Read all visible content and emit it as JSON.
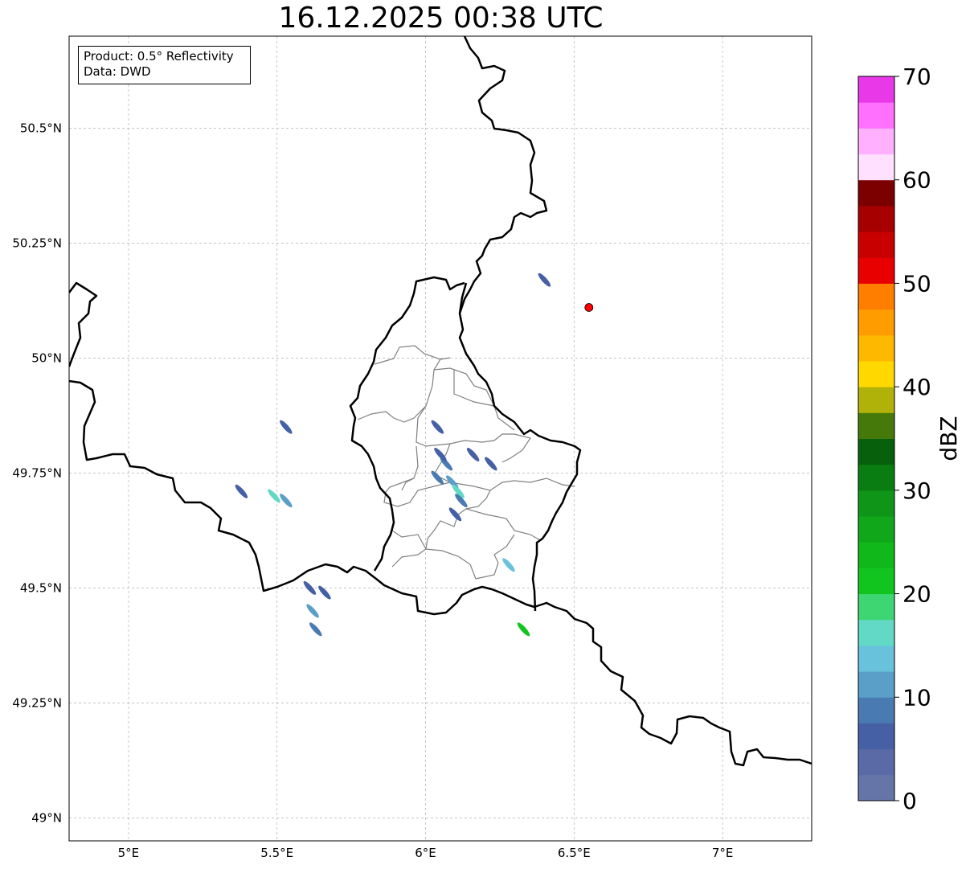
{
  "title": "16.12.2025 00:38 UTC",
  "info": {
    "product": "Product: 0.5° Reflectivity",
    "source": "Data: DWD"
  },
  "map": {
    "lon_range": [
      4.8,
      7.3
    ],
    "lat_range": [
      48.95,
      50.7
    ],
    "x_ticks": [
      {
        "value": 5.0,
        "label": "5°E"
      },
      {
        "value": 5.5,
        "label": "5.5°E"
      },
      {
        "value": 6.0,
        "label": "6°E"
      },
      {
        "value": 6.5,
        "label": "6.5°E"
      },
      {
        "value": 7.0,
        "label": "7°E"
      }
    ],
    "y_ticks": [
      {
        "value": 49.0,
        "label": "49°N"
      },
      {
        "value": 49.25,
        "label": "49.25°N"
      },
      {
        "value": 49.5,
        "label": "49.5°N"
      },
      {
        "value": 49.75,
        "label": "49.75°N"
      },
      {
        "value": 50.0,
        "label": "50°N"
      },
      {
        "value": 50.25,
        "label": "50.25°N"
      },
      {
        "value": 50.5,
        "label": "50.5°N"
      }
    ],
    "radar_site": {
      "lon": 6.55,
      "lat": 50.11,
      "color": "#ff0000"
    }
  },
  "colorbar": {
    "label": "dBZ",
    "min": 0,
    "max": 70,
    "ticks": [
      {
        "value": 0,
        "label": "0"
      },
      {
        "value": 10,
        "label": "10"
      },
      {
        "value": 20,
        "label": "20"
      },
      {
        "value": 30,
        "label": "30"
      },
      {
        "value": 40,
        "label": "40"
      },
      {
        "value": 50,
        "label": "50"
      },
      {
        "value": 60,
        "label": "60"
      },
      {
        "value": 70,
        "label": "70"
      }
    ],
    "colors": [
      "#6675a8",
      "#5a6aa6",
      "#4560a5",
      "#4a7ab2",
      "#5a9fc8",
      "#68c2dc",
      "#62d9c4",
      "#3dd672",
      "#12c41e",
      "#10b81a",
      "#10a81a",
      "#0f9518",
      "#0a7d12",
      "#06600c",
      "#457a0a",
      "#b0b20a",
      "#ffd800",
      "#ffb800",
      "#ff9c00",
      "#ff7e00",
      "#e80000",
      "#c80000",
      "#a60000",
      "#7c0000",
      "#ffe0ff",
      "#ffb0ff",
      "#ff70ff",
      "#e838e8"
    ]
  },
  "echoes": [
    {
      "lon": 6.07,
      "lat": 49.77,
      "dbz": 8
    },
    {
      "lon": 6.09,
      "lat": 49.73,
      "dbz": 12
    },
    {
      "lon": 6.11,
      "lat": 49.71,
      "dbz": 17
    },
    {
      "lon": 6.12,
      "lat": 49.69,
      "dbz": 8
    },
    {
      "lon": 6.05,
      "lat": 49.79,
      "dbz": 6
    },
    {
      "lon": 6.04,
      "lat": 49.74,
      "dbz": 9
    },
    {
      "lon": 6.1,
      "lat": 49.66,
      "dbz": 7
    },
    {
      "lon": 6.16,
      "lat": 49.79,
      "dbz": 6
    },
    {
      "lon": 6.22,
      "lat": 49.77,
      "dbz": 5
    },
    {
      "lon": 6.04,
      "lat": 49.85,
      "dbz": 5
    },
    {
      "lon": 5.53,
      "lat": 49.85,
      "dbz": 6
    },
    {
      "lon": 5.49,
      "lat": 49.7,
      "dbz": 15
    },
    {
      "lon": 5.53,
      "lat": 49.69,
      "dbz": 12
    },
    {
      "lon": 5.38,
      "lat": 49.71,
      "dbz": 6
    },
    {
      "lon": 5.66,
      "lat": 49.49,
      "dbz": 6
    },
    {
      "lon": 5.61,
      "lat": 49.5,
      "dbz": 5
    },
    {
      "lon": 5.62,
      "lat": 49.45,
      "dbz": 12
    },
    {
      "lon": 5.63,
      "lat": 49.41,
      "dbz": 9
    },
    {
      "lon": 6.28,
      "lat": 49.55,
      "dbz": 14
    },
    {
      "lon": 6.33,
      "lat": 49.41,
      "dbz": 22
    },
    {
      "lon": 6.4,
      "lat": 50.17,
      "dbz": 5
    }
  ]
}
